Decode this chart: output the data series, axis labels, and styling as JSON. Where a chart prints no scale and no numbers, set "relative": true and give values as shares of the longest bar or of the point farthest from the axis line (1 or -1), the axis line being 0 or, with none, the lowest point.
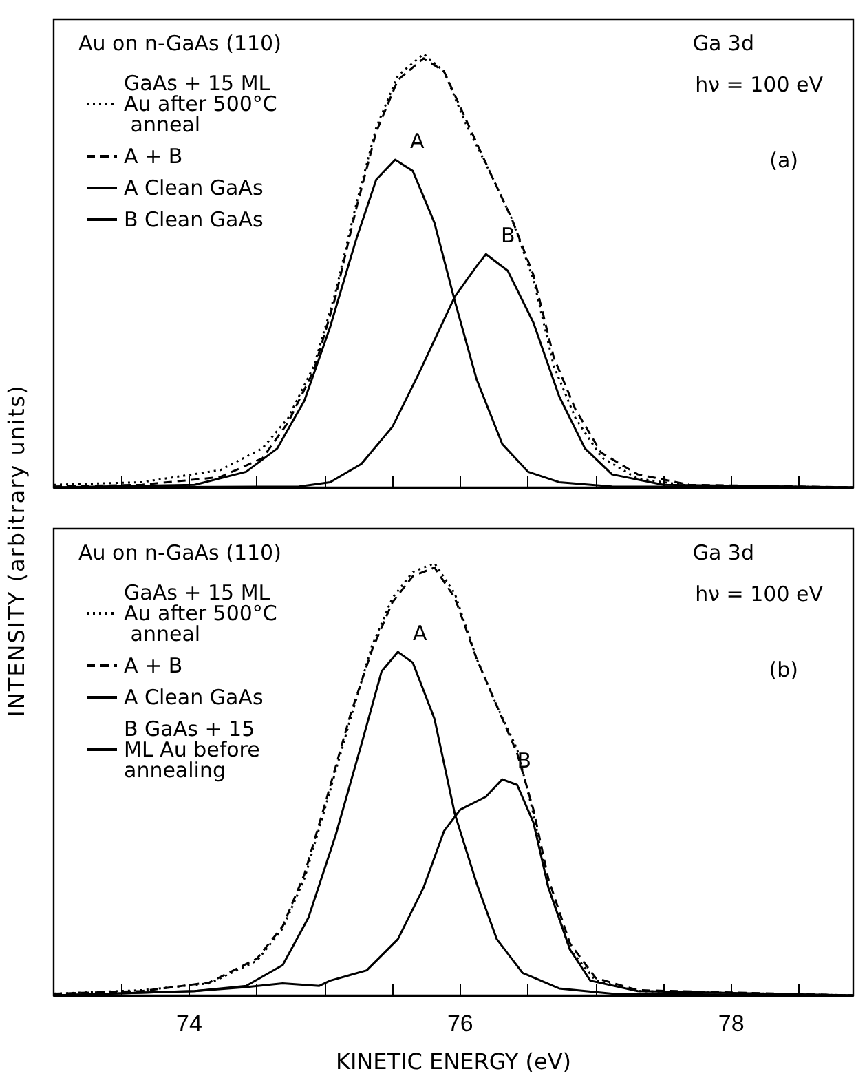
{
  "chart_data": [
    {
      "type": "line",
      "relative": true,
      "ylabel": "INTENSITY (arbitrary units)",
      "legend_title": "Au on n-GaAs (110)",
      "legend": "top left",
      "tick_labels": false,
      "xlim": [
        73,
        78.9
      ],
      "xticks": [
        {
          "value": 73.5,
          "label": null
        },
        {
          "value": 74,
          "label": null
        },
        {
          "value": 74.5,
          "label": null
        },
        {
          "value": 75,
          "label": null
        },
        {
          "value": 75.5,
          "label": null
        },
        {
          "value": 76,
          "label": null
        },
        {
          "value": 76.5,
          "label": null
        },
        {
          "value": 77,
          "label": null
        },
        {
          "value": 77.5,
          "label": null
        },
        {
          "value": 78,
          "label": null
        },
        {
          "value": 78.5,
          "label": null
        }
      ],
      "annotations": [
        "Ga 3d",
        "hν = 100 eV",
        "(a)",
        {
          "text": "A",
          "x": 75.52,
          "y": 0.756
        },
        {
          "text": "B",
          "x": 76.19,
          "y": 0.538
        }
      ],
      "series": [
        {
          "name": "GaAs + 15 ML Au after 500°C anneal",
          "color": "#000000",
          "line_style": "dotted",
          "x": [
            73.0,
            73.65,
            74.23,
            74.54,
            74.73,
            74.92,
            75.08,
            75.23,
            75.38,
            75.54,
            75.73,
            75.88,
            76.04,
            76.23,
            76.38,
            76.54,
            76.69,
            76.85,
            77.04,
            77.31,
            77.69,
            78.9
          ],
          "values": [
            0.006,
            0.012,
            0.04,
            0.09,
            0.16,
            0.28,
            0.45,
            0.65,
            0.83,
            0.95,
            1.0,
            0.96,
            0.84,
            0.72,
            0.62,
            0.48,
            0.28,
            0.16,
            0.07,
            0.02,
            0.004,
            0
          ]
        },
        {
          "name": "A + B",
          "color": "#000000",
          "line_style": "dashed",
          "x": [
            73.0,
            73.65,
            74.23,
            74.54,
            74.73,
            74.92,
            75.08,
            75.23,
            75.38,
            75.54,
            75.73,
            75.88,
            76.04,
            76.23,
            76.38,
            76.54,
            76.69,
            76.85,
            77.04,
            77.31,
            77.69,
            78.9
          ],
          "values": [
            0.002,
            0.006,
            0.024,
            0.067,
            0.15,
            0.27,
            0.44,
            0.64,
            0.82,
            0.94,
            0.99,
            0.96,
            0.85,
            0.72,
            0.62,
            0.49,
            0.3,
            0.18,
            0.08,
            0.03,
            0.006,
            0
          ]
        },
        {
          "name": "A Clean GaAs",
          "color": "#000000",
          "line_style": "solid",
          "x": [
            73.0,
            74.04,
            74.42,
            74.65,
            74.85,
            75.04,
            75.23,
            75.38,
            75.52,
            75.65,
            75.81,
            75.96,
            76.12,
            76.31,
            76.5,
            76.73,
            77.12,
            78.9
          ],
          "values": [
            0,
            0.006,
            0.036,
            0.09,
            0.2,
            0.37,
            0.57,
            0.71,
            0.756,
            0.73,
            0.61,
            0.43,
            0.25,
            0.1,
            0.036,
            0.012,
            0.002,
            0
          ]
        },
        {
          "name": "B Clean GaAs",
          "color": "#000000",
          "line_style": "solid",
          "x": [
            73.0,
            74.81,
            75.04,
            75.27,
            75.5,
            75.69,
            75.96,
            76.12,
            76.19,
            76.35,
            76.54,
            76.73,
            76.92,
            77.12,
            77.5,
            78.9
          ],
          "values": [
            0,
            0.002,
            0.012,
            0.054,
            0.14,
            0.26,
            0.44,
            0.51,
            0.538,
            0.5,
            0.38,
            0.21,
            0.09,
            0.03,
            0.006,
            0
          ]
        }
      ]
    },
    {
      "type": "line",
      "relative": true,
      "xlabel": "KINETIC ENERGY (eV)",
      "legend_title": "Au on n-GaAs (110)",
      "legend": "top left",
      "tick_labels": "x",
      "xlim": [
        73,
        78.9
      ],
      "xticks": [
        {
          "value": 73.5,
          "label": null
        },
        74,
        {
          "value": 74.5,
          "label": null
        },
        {
          "value": 75,
          "label": null
        },
        {
          "value": 75.5,
          "label": null
        },
        76,
        {
          "value": 76.5,
          "label": null
        },
        {
          "value": 77,
          "label": null
        },
        {
          "value": 77.5,
          "label": null
        },
        78,
        {
          "value": 78.5,
          "label": null
        }
      ],
      "annotations": [
        "Ga 3d",
        "hν = 100 eV",
        "(b)",
        {
          "text": "A",
          "x": 75.54,
          "y": 0.795
        },
        {
          "text": "B",
          "x": 76.31,
          "y": 0.5
        }
      ],
      "series": [
        {
          "name": "GaAs + 15 ML Au after 500°C anneal",
          "color": "#000000",
          "line_style": "dotted",
          "x": [
            73.0,
            73.65,
            74.15,
            74.5,
            74.69,
            74.85,
            75.0,
            75.19,
            75.35,
            75.5,
            75.65,
            75.81,
            75.96,
            76.12,
            76.27,
            76.42,
            76.54,
            76.65,
            76.81,
            77.0,
            77.31,
            78.9
          ],
          "values": [
            0.004,
            0.012,
            0.028,
            0.08,
            0.155,
            0.27,
            0.43,
            0.64,
            0.81,
            0.92,
            0.98,
            1.0,
            0.93,
            0.78,
            0.67,
            0.57,
            0.42,
            0.25,
            0.106,
            0.034,
            0.01,
            0
          ]
        },
        {
          "name": "A + B",
          "color": "#000000",
          "line_style": "dashed",
          "x": [
            73.0,
            73.65,
            74.15,
            74.5,
            74.69,
            74.85,
            75.0,
            75.19,
            75.35,
            75.5,
            75.65,
            75.81,
            75.96,
            76.12,
            76.27,
            76.42,
            76.54,
            76.65,
            76.81,
            77.0,
            77.31,
            78.9
          ],
          "values": [
            0.004,
            0.01,
            0.03,
            0.085,
            0.16,
            0.28,
            0.44,
            0.65,
            0.8,
            0.91,
            0.97,
            0.99,
            0.92,
            0.78,
            0.67,
            0.56,
            0.43,
            0.27,
            0.12,
            0.04,
            0.012,
            0
          ]
        },
        {
          "name": "A Clean GaAs",
          "color": "#000000",
          "line_style": "solid",
          "x": [
            73.0,
            74.04,
            74.42,
            74.69,
            74.88,
            75.08,
            75.27,
            75.42,
            75.54,
            75.65,
            75.81,
            75.96,
            76.12,
            76.27,
            76.46,
            76.73,
            77.12,
            78.9
          ],
          "values": [
            0,
            0.01,
            0.022,
            0.07,
            0.18,
            0.37,
            0.58,
            0.75,
            0.795,
            0.77,
            0.64,
            0.42,
            0.26,
            0.13,
            0.052,
            0.016,
            0.004,
            0
          ]
        },
        {
          "name": "B GaAs + 15 ML Au before annealing",
          "color": "#000000",
          "line_style": "solid",
          "x": [
            73.0,
            74.04,
            74.42,
            74.69,
            74.96,
            75.04,
            75.31,
            75.54,
            75.73,
            75.88,
            76.0,
            76.19,
            76.31,
            76.42,
            76.54,
            76.65,
            76.81,
            76.96,
            77.31,
            78.9
          ],
          "values": [
            0,
            0.01,
            0.019,
            0.028,
            0.022,
            0.034,
            0.058,
            0.13,
            0.25,
            0.38,
            0.43,
            0.46,
            0.5,
            0.487,
            0.4,
            0.25,
            0.106,
            0.034,
            0.01,
            0
          ]
        }
      ]
    }
  ]
}
